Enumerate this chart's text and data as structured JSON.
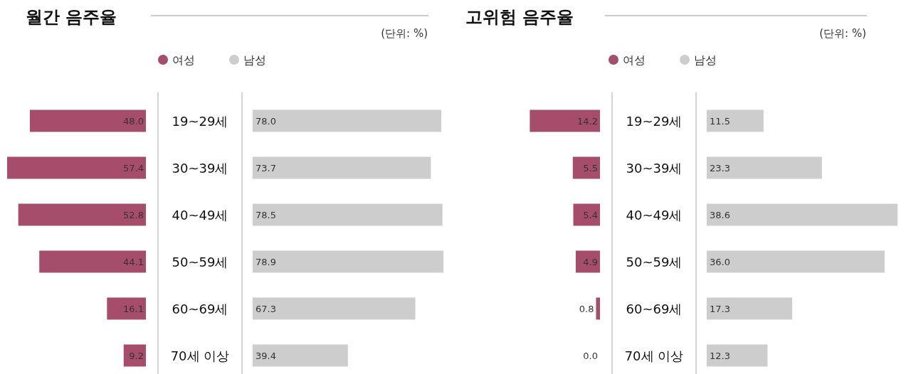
{
  "chart_data": [
    {
      "type": "bar",
      "orientation": "horizontal",
      "title": "월간 음주율",
      "legend": "top",
      "categories": [
        "19~29세",
        "30~39세",
        "40~49세",
        "50~59세",
        "60~69세",
        "70세 이상"
      ],
      "series": [
        {
          "name": "여성",
          "color": "#a64d6c",
          "values": [
            48.0,
            57.4,
            52.8,
            44.1,
            16.1,
            9.2
          ],
          "value_labels": [
            "48.0",
            "57.4",
            "52.8",
            "44.1",
            "16.1",
            "9.2"
          ]
        }
      ]
    },
    {
      "type": "bar",
      "orientation": "horizontal",
      "annotations": [
        "(단위: %)"
      ],
      "legend": "top",
      "categories": [
        null,
        null,
        null,
        null,
        null,
        null
      ],
      "series": [
        {
          "name": "남성",
          "color": "#cdcdcd",
          "values": [
            78.0,
            73.7,
            78.5,
            78.9,
            67.3,
            39.4
          ],
          "value_labels": [
            "78.0",
            "73.7",
            "78.5",
            "78.9",
            "67.3",
            "39.4"
          ]
        }
      ]
    },
    {
      "type": "bar",
      "orientation": "horizontal",
      "title": "고위험 음주율",
      "legend": "top",
      "categories": [
        "19~29세",
        "30~39세",
        "40~49세",
        "50~59세",
        "60~69세",
        "70세 이상"
      ],
      "series": [
        {
          "name": "여성",
          "color": "#a64d6c",
          "values": [
            14.2,
            5.5,
            5.4,
            4.9,
            0.8,
            0.0
          ],
          "value_labels": [
            "14.2",
            "5.5",
            "5.4",
            "4.9",
            "0.8",
            "0.0"
          ]
        }
      ]
    },
    {
      "type": "bar",
      "orientation": "horizontal",
      "annotations": [
        "(단위: %)"
      ],
      "legend": "top",
      "categories": [
        null,
        null,
        null,
        null,
        null,
        null
      ],
      "series": [
        {
          "name": "남성",
          "color": "#cdcdcd",
          "values": [
            11.5,
            23.3,
            38.6,
            36.0,
            17.3,
            12.3
          ],
          "value_labels": [
            "11.5",
            "23.3",
            "38.6",
            "36.0",
            "17.3",
            "12.3"
          ]
        }
      ]
    }
  ]
}
